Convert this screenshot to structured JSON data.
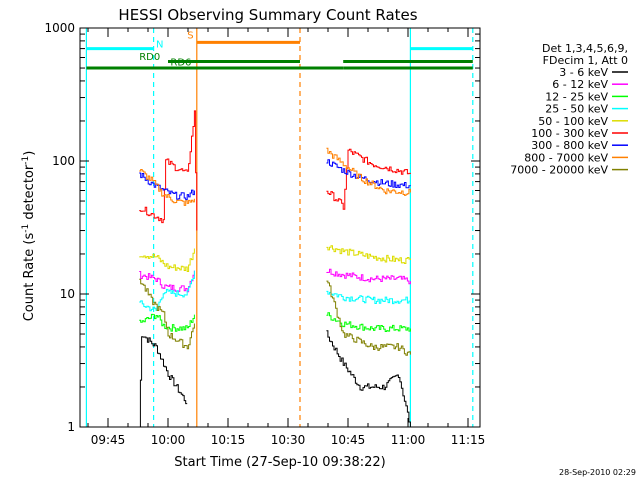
{
  "chart_data": {
    "type": "line",
    "title": "HESSI Observing Summary Count Rates",
    "xlabel": "Start Time (27-Sep-10 09:38:22)",
    "ylabel_main": "Count Rate (s",
    "ylabel_sup1": "-1",
    "ylabel_mid": " detector",
    "ylabel_sup2": "-1",
    "ylabel_end": ")",
    "yscale": "log",
    "xlim": [
      "09:38",
      "11:18"
    ],
    "ylim": [
      1,
      1000
    ],
    "x_ticks": [
      "09:45",
      "10:00",
      "10:15",
      "10:30",
      "10:45",
      "11:00",
      "11:15"
    ],
    "y_ticks": [
      "1",
      "10",
      "100",
      "1000"
    ],
    "legend_header_1": "Det 1,3,4,5,6,9,",
    "legend_header_2": "FDecim 1, Att 0",
    "legend_placement": "right",
    "series": [
      {
        "name": "3 - 6 keV",
        "color": "#000000",
        "segments": [
          [
            [
              9.88,
              1.0
            ],
            [
              9.89,
              5.0
            ],
            [
              9.95,
              4.0
            ],
            [
              10.0,
              2.5
            ],
            [
              10.08,
              1.5
            ]
          ],
          [
            [
              10.66,
              5.0
            ],
            [
              10.73,
              3.0
            ],
            [
              10.8,
              2.0
            ],
            [
              10.9,
              2.0
            ],
            [
              10.96,
              2.5
            ],
            [
              11.01,
              1.0
            ]
          ]
        ]
      },
      {
        "name": "6 - 12 keV",
        "color": "#ff00ff",
        "segments": [
          [
            [
              9.88,
              14.0
            ],
            [
              9.95,
              13.0
            ],
            [
              9.98,
              11.5
            ],
            [
              10.0,
              11.2
            ],
            [
              10.08,
              11.0
            ],
            [
              10.11,
              15.0
            ]
          ],
          [
            [
              10.66,
              15.0
            ],
            [
              10.73,
              14.0
            ],
            [
              10.85,
              13.0
            ],
            [
              10.96,
              13.0
            ],
            [
              11.01,
              12.5
            ]
          ]
        ]
      },
      {
        "name": "12 - 25 keV",
        "color": "#00ff00",
        "segments": [
          [
            [
              9.88,
              6.0
            ],
            [
              9.95,
              7.0
            ],
            [
              9.98,
              5.8
            ],
            [
              10.0,
              5.6
            ],
            [
              10.08,
              5.5
            ],
            [
              10.11,
              7.0
            ]
          ],
          [
            [
              10.66,
              7.0
            ],
            [
              10.73,
              6.0
            ],
            [
              10.85,
              5.5
            ],
            [
              10.96,
              5.5
            ],
            [
              11.01,
              5.5
            ]
          ]
        ]
      },
      {
        "name": "25 - 50 keV",
        "color": "#00ffff",
        "segments": [
          [
            [
              9.88,
              8.5
            ],
            [
              9.95,
              7.5
            ],
            [
              9.98,
              10.5
            ],
            [
              10.0,
              10.2
            ],
            [
              10.08,
              10.0
            ],
            [
              10.11,
              15.0
            ]
          ],
          [
            [
              10.66,
              10.5
            ],
            [
              10.73,
              9.5
            ],
            [
              10.85,
              9.0
            ],
            [
              10.96,
              9.0
            ],
            [
              11.01,
              9.0
            ]
          ]
        ]
      },
      {
        "name": "50 - 100 keV",
        "color": "#dddd00",
        "segments": [
          [
            [
              9.88,
              20.0
            ],
            [
              9.95,
              19.0
            ],
            [
              9.98,
              17.0
            ],
            [
              10.0,
              16.0
            ],
            [
              10.08,
              15.5
            ],
            [
              10.11,
              22.0
            ]
          ],
          [
            [
              10.66,
              23.0
            ],
            [
              10.73,
              21.0
            ],
            [
              10.85,
              19.0
            ],
            [
              10.96,
              18.0
            ],
            [
              11.01,
              18.0
            ]
          ]
        ]
      },
      {
        "name": "100 - 300 keV",
        "color": "#ff0000",
        "segments": [
          [
            [
              9.88,
              45.0
            ],
            [
              9.93,
              40.0
            ],
            [
              9.98,
              36.0
            ],
            [
              9.99,
              100.0
            ],
            [
              10.03,
              90.0
            ],
            [
              10.08,
              80.0
            ],
            [
              10.11,
              230.0
            ],
            [
              10.12,
              30.0
            ]
          ],
          [
            [
              10.66,
              60.0
            ],
            [
              10.71,
              50.0
            ],
            [
              10.73,
              45.0
            ],
            [
              10.75,
              120.0
            ],
            [
              10.85,
              95.0
            ],
            [
              10.96,
              85.0
            ],
            [
              11.01,
              80.0
            ]
          ]
        ]
      },
      {
        "name": "300 - 800 keV",
        "color": "#0000ff",
        "segments": [
          [
            [
              9.88,
              80.0
            ],
            [
              9.93,
              68.0
            ],
            [
              9.98,
              60.0
            ],
            [
              10.03,
              55.0
            ],
            [
              10.08,
              54.0
            ],
            [
              10.11,
              60.0
            ]
          ],
          [
            [
              10.66,
              100.0
            ],
            [
              10.73,
              85.0
            ],
            [
              10.8,
              75.0
            ],
            [
              10.9,
              68.0
            ],
            [
              11.01,
              65.0
            ]
          ]
        ]
      },
      {
        "name": "800 - 7000 keV",
        "color": "#ff8000",
        "segments": [
          [
            [
              9.88,
              85.0
            ],
            [
              9.93,
              72.0
            ],
            [
              9.98,
              56.0
            ],
            [
              10.03,
              50.0
            ],
            [
              10.08,
              48.0
            ],
            [
              10.11,
              52.0
            ]
          ],
          [
            [
              10.66,
              120.0
            ],
            [
              10.73,
              95.0
            ],
            [
              10.8,
              75.0
            ],
            [
              10.9,
              60.0
            ],
            [
              11.01,
              58.0
            ]
          ]
        ]
      },
      {
        "name": "7000 - 20000 keV",
        "color": "#808000",
        "segments": [
          [
            [
              9.88,
              13.0
            ],
            [
              9.93,
              9.0
            ],
            [
              9.98,
              7.0
            ],
            [
              10.0,
              5.0
            ],
            [
              10.08,
              4.0
            ],
            [
              10.11,
              6.0
            ]
          ],
          [
            [
              10.66,
              13.0
            ],
            [
              10.73,
              5.0
            ],
            [
              10.85,
              4.0
            ],
            [
              10.96,
              4.0
            ],
            [
              11.01,
              3.5
            ]
          ]
        ]
      }
    ],
    "annotations": {
      "flags": [
        {
          "label": "N",
          "color": "#00ffff",
          "segments": [
            [
              9.66,
              9.94
            ],
            [
              11.01,
              11.27
            ]
          ],
          "level": 700
        },
        {
          "label": "S",
          "color": "#ff8000",
          "segments": [
            [
              10.12,
              10.55
            ]
          ],
          "level": 780
        },
        {
          "label": "RD0",
          "color": "#008000",
          "segments": [
            [
              9.66,
              10.55
            ],
            [
              10.55,
              10.73
            ],
            [
              10.73,
              11.27
            ]
          ],
          "level": 500
        },
        {
          "label": "RD6",
          "color": "#008000",
          "segments": [
            [
              10.0,
              10.55
            ],
            [
              10.73,
              11.27
            ]
          ],
          "level": 560
        }
      ],
      "vlines": [
        {
          "x": 9.66,
          "color": "#00ffff",
          "dashed": false
        },
        {
          "x": 9.94,
          "color": "#00ffff",
          "dashed": true
        },
        {
          "x": 10.12,
          "color": "#ff8000",
          "dashed": false
        },
        {
          "x": 10.55,
          "color": "#ff8000",
          "dashed": true
        },
        {
          "x": 11.01,
          "color": "#00ffff",
          "dashed": false
        },
        {
          "x": 11.27,
          "color": "#00ffff",
          "dashed": true
        }
      ]
    }
  },
  "footer": {
    "timestamp": "28-Sep-2010 02:29"
  }
}
